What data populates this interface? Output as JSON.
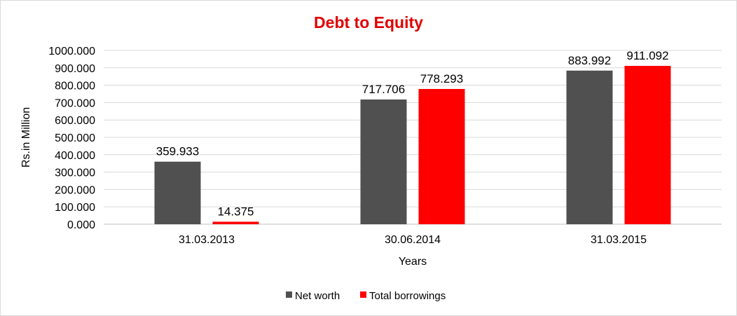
{
  "chart_data": {
    "type": "bar",
    "title": "Debt to Equity",
    "xlabel": "Years",
    "ylabel": "Rs.in Million",
    "categories": [
      "31.03.2013",
      "30.06.2014",
      "31.03.2015"
    ],
    "series": [
      {
        "name": "Net worth",
        "values": [
          359.933,
          717.706,
          883.992
        ],
        "labels": [
          "359.933",
          "717.706",
          "883.992"
        ],
        "color": "#505050"
      },
      {
        "name": "Total borrowings",
        "values": [
          14.375,
          778.293,
          911.092
        ],
        "labels": [
          "14.375",
          "778.293",
          "911.092"
        ],
        "color": "#ff0000"
      }
    ],
    "ylim": [
      0,
      1000
    ],
    "yticks": [
      "0.000",
      "100.000",
      "200.000",
      "300.000",
      "400.000",
      "500.000",
      "600.000",
      "700.000",
      "800.000",
      "900.000",
      "1000.000"
    ],
    "grid": true,
    "legend": "bottom",
    "title_color": "#e00000",
    "grid_color": "#d9d9d9"
  }
}
